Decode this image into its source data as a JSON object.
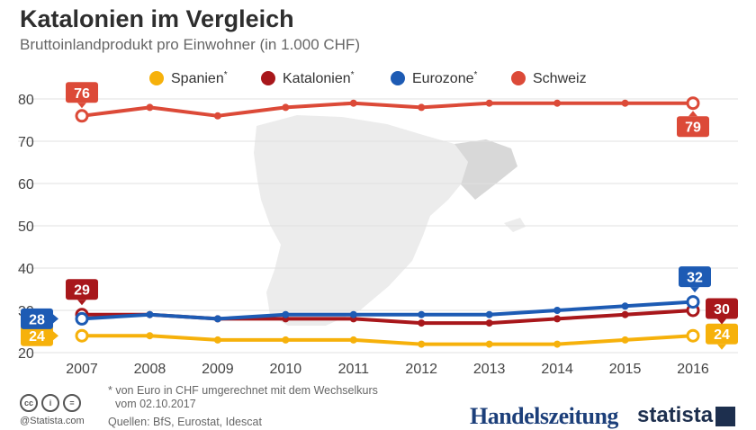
{
  "header": {
    "title": "Katalonien im Vergleich",
    "subtitle": "Bruttoinlandprodukt pro Einwohner (in 1.000 CHF)"
  },
  "chart_data": {
    "type": "line",
    "x": [
      "2007",
      "2008",
      "2009",
      "2010",
      "2011",
      "2012",
      "2013",
      "2014",
      "2015",
      "2016"
    ],
    "ylim": [
      20,
      80
    ],
    "yticks": [
      20,
      30,
      40,
      50,
      60,
      70,
      80
    ],
    "grid": true,
    "legend_position": "top",
    "series": [
      {
        "name": "Spanien",
        "marker": "*",
        "color": "#f6b10b",
        "values": [
          24,
          24,
          23,
          23,
          23,
          22,
          22,
          22,
          23,
          24
        ],
        "start_label": "24",
        "end_label": "24"
      },
      {
        "name": "Katalonien",
        "marker": "*",
        "color": "#a8171b",
        "values": [
          29,
          29,
          28,
          28,
          28,
          27,
          27,
          28,
          29,
          30
        ],
        "start_label": "29",
        "end_label": "30"
      },
      {
        "name": "Eurozone",
        "marker": "*",
        "color": "#1d5bb4",
        "values": [
          28,
          29,
          28,
          29,
          29,
          29,
          29,
          30,
          31,
          32
        ],
        "start_label": "28",
        "end_label": "32"
      },
      {
        "name": "Schweiz",
        "marker": "",
        "color": "#dc4a38",
        "values": [
          76,
          78,
          76,
          78,
          79,
          78,
          79,
          79,
          79,
          79
        ],
        "start_label": "76",
        "end_label": "79"
      }
    ]
  },
  "footer": {
    "note_line1": "* von Euro in CHF umgerechnet mit dem Wechselkurs",
    "note_line2": "vom 02.10.2017",
    "sources": "Quellen: BfS, Eurostat, Idescat",
    "credit": "@Statista.com",
    "license_icons": [
      "cc-icon",
      "by-icon",
      "nd-icon"
    ],
    "license_glyphs": [
      "cc",
      "i",
      "="
    ]
  },
  "brands": {
    "publisher": "Handelszeitung",
    "statista": "statista"
  }
}
